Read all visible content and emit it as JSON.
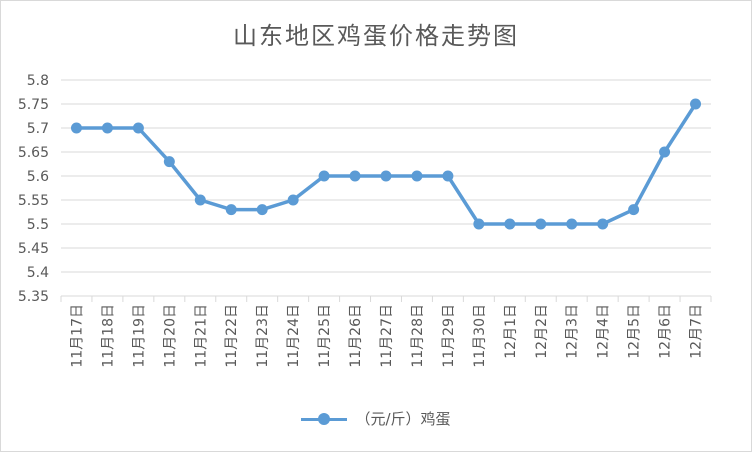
{
  "chart_data": {
    "type": "line",
    "title": "山东地区鸡蛋价格走势图",
    "categories": [
      "11月17日",
      "11月18日",
      "11月19日",
      "11月20日",
      "11月21日",
      "11月22日",
      "11月23日",
      "11月24日",
      "11月25日",
      "11月26日",
      "11月27日",
      "11月28日",
      "11月29日",
      "11月30日",
      "12月1日",
      "12月2日",
      "12月3日",
      "12月4日",
      "12月5日",
      "12月6日",
      "12月7日"
    ],
    "series": [
      {
        "name": "（元/斤）鸡蛋",
        "values": [
          5.7,
          5.7,
          5.7,
          5.63,
          5.55,
          5.53,
          5.53,
          5.55,
          5.6,
          5.6,
          5.6,
          5.6,
          5.6,
          5.5,
          5.5,
          5.5,
          5.5,
          5.5,
          5.53,
          5.65,
          5.75
        ]
      }
    ],
    "yticks": [
      "5.35",
      "5.4",
      "5.45",
      "5.5",
      "5.55",
      "5.6",
      "5.65",
      "5.7",
      "5.75",
      "5.8"
    ],
    "ylim": [
      5.35,
      5.8
    ],
    "grid": true,
    "legend_position": "bottom",
    "line_color": "#5b9bd5"
  }
}
